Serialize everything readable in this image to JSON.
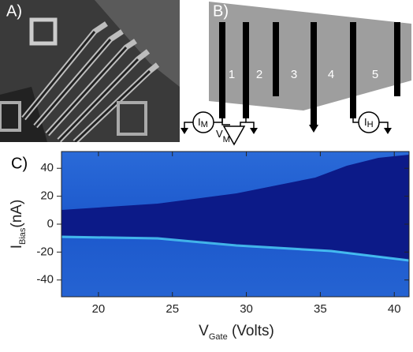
{
  "panel_a": {
    "label": "A)"
  },
  "panel_b": {
    "label": "B)",
    "contacts": [
      "1",
      "2",
      "3",
      "4",
      "5"
    ],
    "meters": {
      "current_m": {
        "main": "I",
        "sub": "M"
      },
      "voltage_m": {
        "main": "V",
        "sub": "M"
      },
      "current_h": {
        "main": "I",
        "sub": "H"
      }
    }
  },
  "panel_c": {
    "label": "C)"
  },
  "chart_data": {
    "type": "heatmap",
    "x_label": {
      "main": "V",
      "sub": "Gate",
      "rest": " (Volts)"
    },
    "y_label": {
      "main": "I",
      "sub": "Bias",
      "rest": "(nA)"
    },
    "xlim": [
      17.5,
      41
    ],
    "ylim": [
      -52,
      52
    ],
    "xticks": [
      20,
      25,
      30,
      35,
      40
    ],
    "yticks": [
      -40,
      -20,
      0,
      20,
      40
    ]
  }
}
